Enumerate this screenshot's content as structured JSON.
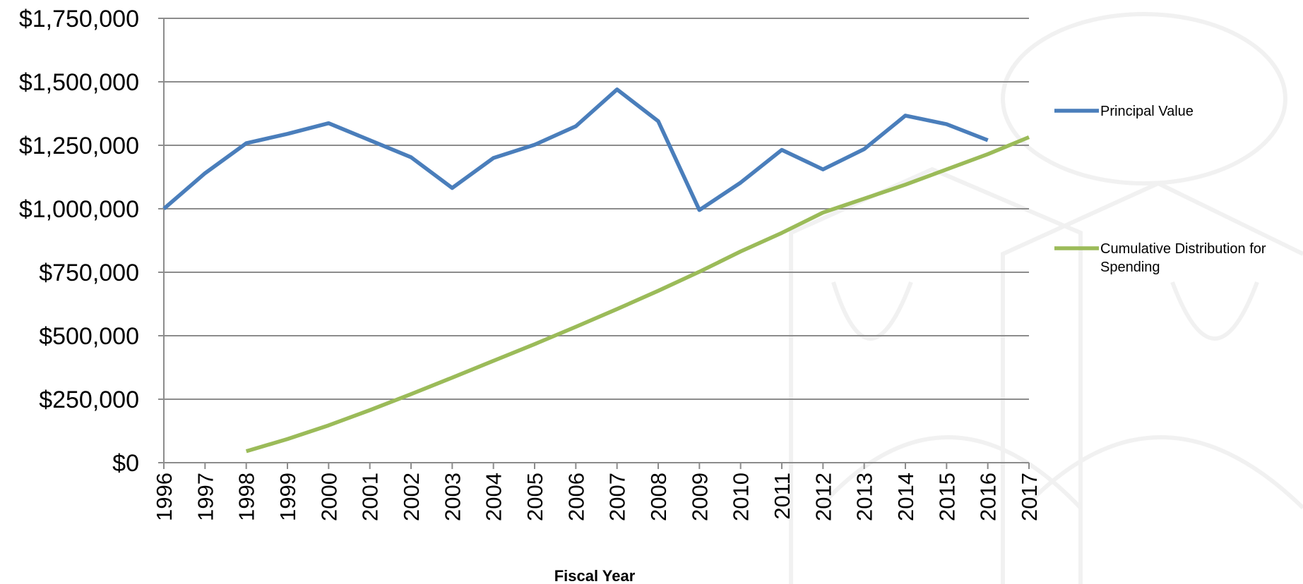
{
  "chart_data": {
    "type": "line",
    "title": "",
    "xlabel": "Fiscal Year",
    "ylabel": "",
    "ylim": [
      0,
      1750000
    ],
    "y_ticks": [
      "$0",
      "$250,000",
      "$500,000",
      "$750,000",
      "$1,000,000",
      "$1,250,000",
      "$1,500,000",
      "$1,750,000"
    ],
    "x": [
      1996,
      1997,
      1998,
      1999,
      2000,
      2001,
      2002,
      2003,
      2004,
      2005,
      2006,
      2007,
      2008,
      2009,
      2010,
      2011,
      2012,
      2013,
      2014,
      2015,
      2016,
      2017
    ],
    "grid": true,
    "legend_position": "right",
    "series": [
      {
        "name": "Principal Value",
        "color": "#4a7ebb",
        "values": [
          1000000,
          1140000,
          1258000,
          1295000,
          1337000,
          1270000,
          1203000,
          1082000,
          1200000,
          1252000,
          1325000,
          1470000,
          1345000,
          995000,
          1103000,
          1232000,
          1155000,
          1235000,
          1367000,
          1333000,
          1270000,
          null
        ]
      },
      {
        "name": "Cumulative Distribution for Spending",
        "color": "#9bbb59",
        "values": [
          null,
          null,
          45000,
          93000,
          147000,
          207000,
          270000,
          335000,
          401000,
          467000,
          535000,
          605000,
          677000,
          752000,
          832000,
          905000,
          985000,
          1040000,
          1095000,
          1155000,
          1215000,
          1282000
        ]
      }
    ]
  }
}
